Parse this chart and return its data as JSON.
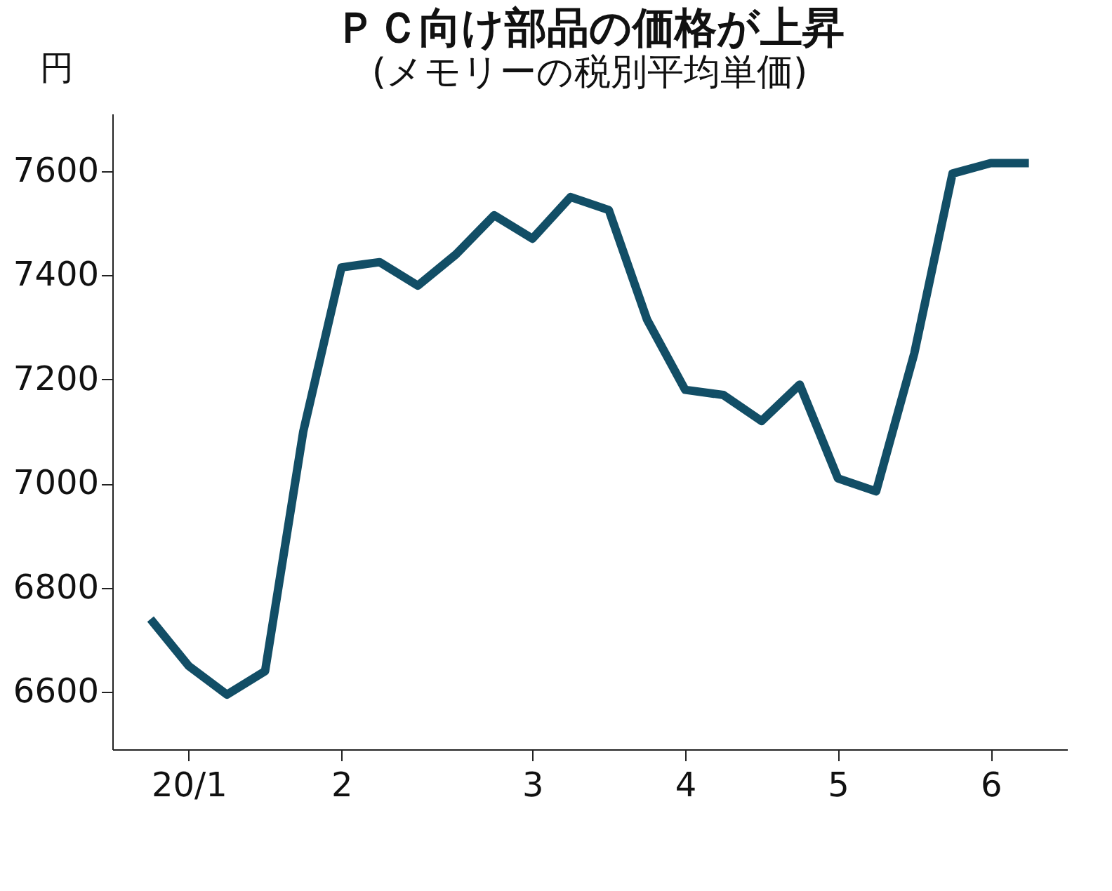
{
  "chart_data": {
    "type": "line",
    "title": "ＰＣ向け部品の価格が上昇",
    "subtitle": "(メモリーの税別平均単価)",
    "ylabel": "円",
    "categories": [
      null,
      "20/1",
      null,
      null,
      null,
      "2",
      null,
      null,
      null,
      null,
      "3",
      null,
      null,
      null,
      "4",
      null,
      null,
      null,
      "5",
      null,
      null,
      null,
      "6",
      null
    ],
    "series": [
      {
        "color": "#124e66",
        "values": [
          6740,
          6650,
          6595,
          6640,
          7100,
          7415,
          7425,
          7380,
          7440,
          7515,
          7470,
          7550,
          7525,
          7315,
          7180,
          7170,
          7120,
          7190,
          7010,
          6985,
          7250,
          7595,
          7615,
          7615
        ]
      }
    ],
    "ylim": [
      6490,
      7710
    ],
    "yticks": [
      6600,
      6800,
      7000,
      7200,
      7400,
      7600
    ],
    "grid": false,
    "marker": "none",
    "line_style": "solid"
  }
}
